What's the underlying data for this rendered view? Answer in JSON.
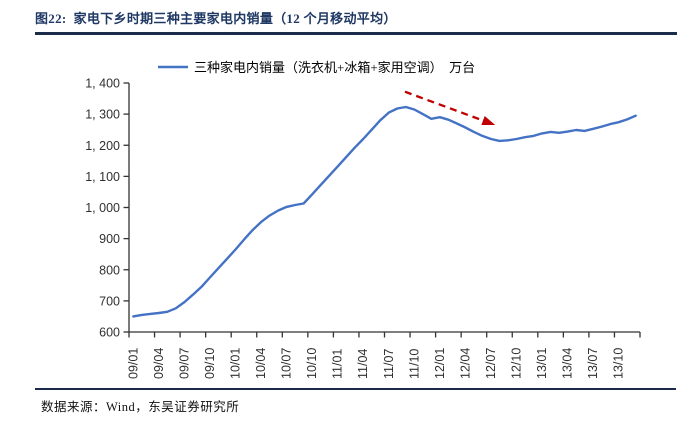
{
  "page": {
    "title": "图22:  家电下乡时期三种主要家电内销量（12 个月移动平均）",
    "source_note": "数据来源：Wind，东吴证券研究所"
  },
  "colors": {
    "title": "#1F3864",
    "rule": "#1c2b4a",
    "series_line": "#4472C4",
    "arrow": "#C00000",
    "axis": "#333333",
    "tick_label": "#303030"
  },
  "chart_data": {
    "type": "line",
    "legend": "三种家电内销量（洗衣机+冰箱+家用空调）　万台",
    "unit": "万台",
    "legend_position": "top",
    "grid": false,
    "x_start": "09/01",
    "x_end": "13/12",
    "x_points_per_tick": 3,
    "x_tick_labels": [
      "09/01",
      "09/04",
      "09/07",
      "09/10",
      "10/01",
      "10/04",
      "10/07",
      "10/10",
      "11/01",
      "11/04",
      "11/07",
      "11/10",
      "12/01",
      "12/04",
      "12/07",
      "12/10",
      "13/01",
      "13/04",
      "13/07",
      "13/10"
    ],
    "ylim": [
      600,
      1400
    ],
    "y_tick_step": 100,
    "y_tick_labels_top_down": [
      "1, 400",
      "1, 300",
      "1, 200",
      "1, 100",
      "1, 000",
      "900",
      "800",
      "700",
      "600"
    ],
    "series": [
      {
        "name": "三种家电内销量（洗衣机+冰箱+家用空调）",
        "values": [
          650,
          655,
          658,
          661,
          665,
          676,
          696,
          720,
          745,
          775,
          805,
          835,
          865,
          897,
          927,
          953,
          974,
          990,
          1002,
          1008,
          1013,
          1042,
          1072,
          1102,
          1132,
          1162,
          1192,
          1220,
          1250,
          1280,
          1305,
          1318,
          1323,
          1315,
          1300,
          1285,
          1290,
          1282,
          1270,
          1257,
          1243,
          1230,
          1220,
          1214,
          1216,
          1220,
          1226,
          1230,
          1238,
          1243,
          1240,
          1244,
          1249,
          1246,
          1253,
          1260,
          1268,
          1274,
          1283,
          1295
        ]
      }
    ],
    "annotation": {
      "type": "arrow",
      "style": "dashed",
      "color": "#C00000",
      "from": {
        "index": 31.9,
        "value": 1372
      },
      "to": {
        "index": 42.5,
        "value": 1265
      }
    }
  }
}
